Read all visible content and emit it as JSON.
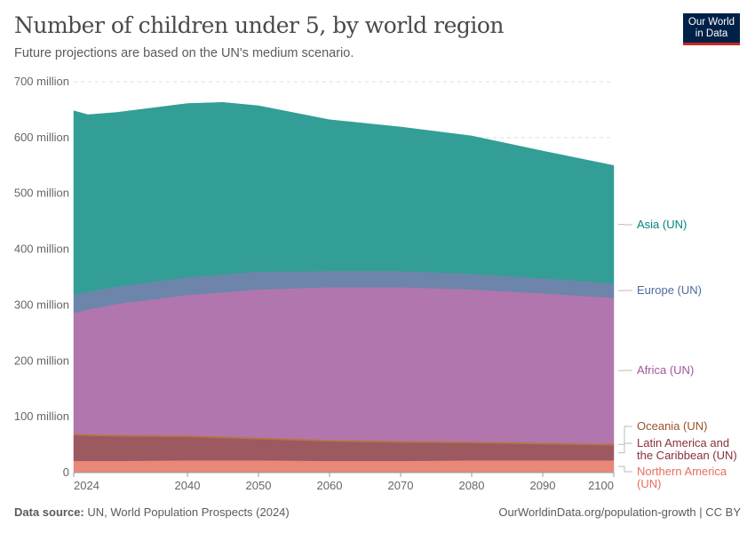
{
  "header": {
    "title": "Number of children under 5, by world region",
    "subtitle": "Future projections are based on the UN's medium scenario.",
    "logo_text": "Our World in Data"
  },
  "footer": {
    "source_label": "Data source:",
    "source": "UN, World Population Prospects (2024)",
    "link": "OurWorldinData.org/population-growth | CC BY"
  },
  "chart_data": {
    "type": "area",
    "stacked": true,
    "title": "Number of children under 5, by world region",
    "x": [
      2024,
      2026,
      2030,
      2040,
      2045,
      2050,
      2060,
      2070,
      2080,
      2090,
      2100
    ],
    "xticks": [
      "2024",
      "2040",
      "2050",
      "2060",
      "2070",
      "2080",
      "2090",
      "2100"
    ],
    "xtick_values": [
      2024,
      2040,
      2050,
      2060,
      2070,
      2080,
      2090,
      2100
    ],
    "yticks": [
      "0",
      "100 million",
      "200 million",
      "300 million",
      "400 million",
      "500 million",
      "600 million",
      "700 million"
    ],
    "ytick_values": [
      0,
      100,
      200,
      300,
      400,
      500,
      600,
      700
    ],
    "ylim": [
      0,
      700
    ],
    "xlim": [
      2024,
      2100
    ],
    "yunit": "million",
    "grid": "horizontal dashed",
    "legend": "right (inline labels)",
    "series": [
      {
        "name": "Northern America (UN)",
        "color": "#e8877a",
        "label_color": "#e56e5a",
        "values": [
          21,
          21,
          21,
          22,
          22,
          22,
          21,
          21,
          22,
          22,
          22
        ]
      },
      {
        "name": "Latin America and the Caribbean (UN)",
        "color": "#9d5960",
        "label_color": "#883039",
        "values": [
          46,
          45,
          44,
          42,
          40,
          38,
          35,
          33,
          31,
          29,
          27
        ]
      },
      {
        "name": "Oceania (UN)",
        "color": "#b5764a",
        "label_color": "#9a5129",
        "values": [
          3,
          3,
          3,
          3,
          3,
          3,
          3,
          3,
          3,
          3,
          3
        ]
      },
      {
        "name": "Africa (UN)",
        "color": "#b276ae",
        "label_color": "#a2559c",
        "values": [
          216,
          223,
          234,
          251,
          258,
          265,
          273,
          275,
          272,
          267,
          261
        ]
      },
      {
        "name": "Europe (UN)",
        "color": "#6d85ab",
        "label_color": "#4c6a9c",
        "values": [
          32,
          32,
          31,
          32,
          32,
          32,
          29,
          29,
          28,
          27,
          26
        ]
      },
      {
        "name": "Asia (UN)",
        "color": "#339e95",
        "label_color": "#00847e",
        "values": [
          330,
          317,
          312,
          311,
          308,
          297,
          271,
          258,
          247,
          228,
          211
        ]
      }
    ]
  }
}
